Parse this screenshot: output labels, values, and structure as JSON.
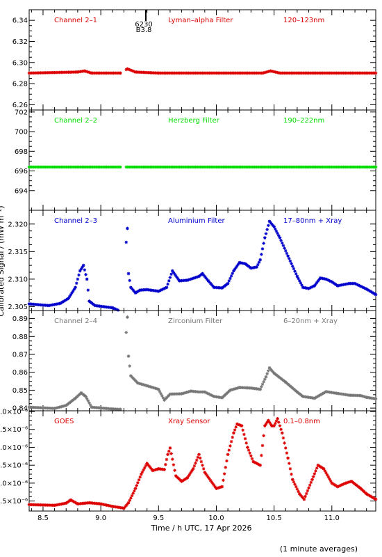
{
  "figure": {
    "ylabel": "Calibrated Signal / (mW m⁻²)",
    "xlabel": "Time / h UTC, 17 Apr 2026",
    "footnote": "(1 minute averages)",
    "event_marker": {
      "x": 9.39,
      "labels": [
        "6230",
        "B3.8"
      ]
    }
  },
  "x_axis": {
    "range": [
      8.38,
      11.38
    ],
    "ticks": [
      8.5,
      9.0,
      9.5,
      10.0,
      10.5,
      11.0
    ],
    "tick_labels": [
      "8.5",
      "9.0",
      "9.5",
      "10.0",
      "10.5",
      "11.0"
    ],
    "minor_step": 0.1
  },
  "chart_data": [
    {
      "type": "scatter",
      "channel": "Channel 2–1",
      "filter": "Lyman–alpha Filter",
      "band": "120–123nm",
      "color": "#dd0000",
      "ylim": [
        6.255,
        6.35
      ],
      "yticks": [
        6.26,
        6.28,
        6.3,
        6.32,
        6.34
      ],
      "ytick_labels": [
        "6.26",
        "6.28",
        "6.30",
        "6.32",
        "6.34"
      ],
      "gap": [
        9.18,
        9.22
      ],
      "points": [
        [
          8.38,
          6.29
        ],
        [
          8.8,
          6.291
        ],
        [
          8.86,
          6.292
        ],
        [
          8.92,
          6.29
        ],
        [
          9.17,
          6.29
        ],
        [
          9.23,
          6.294
        ],
        [
          9.3,
          6.291
        ],
        [
          9.5,
          6.29
        ],
        [
          10.4,
          6.29
        ],
        [
          10.47,
          6.292
        ],
        [
          10.55,
          6.29
        ],
        [
          11.38,
          6.29
        ]
      ]
    },
    {
      "type": "scatter",
      "channel": "Channel 2–2",
      "filter": "Herzberg Filter",
      "band": "190–222nm",
      "color": "#00dd00",
      "ylim": [
        692.0,
        702.2
      ],
      "yticks": [
        694,
        696,
        698,
        700,
        702
      ],
      "ytick_labels": [
        "694",
        "696",
        "698",
        "700",
        "702"
      ],
      "gap": [
        9.18,
        9.22
      ],
      "points": [
        [
          8.38,
          696.4
        ],
        [
          11.38,
          696.4
        ]
      ]
    },
    {
      "type": "scatter",
      "channel": "Channel 2–3",
      "filter": "Aluminium Filter",
      "band": "17–80nm + Xray",
      "color": "#0000cc",
      "ylim": [
        2.3043,
        2.3225
      ],
      "yticks": [
        2.305,
        2.31,
        2.315,
        2.32
      ],
      "ytick_labels": [
        "2.305",
        "2.310",
        "2.315",
        "2.320"
      ],
      "gap": [
        9.18,
        9.22
      ],
      "points": [
        [
          8.38,
          2.3055
        ],
        [
          8.55,
          2.3052
        ],
        [
          8.65,
          2.3056
        ],
        [
          8.72,
          2.3065
        ],
        [
          8.78,
          2.3085
        ],
        [
          8.82,
          2.3115
        ],
        [
          8.85,
          2.3125
        ],
        [
          8.88,
          2.31
        ],
        [
          8.9,
          2.306
        ],
        [
          8.95,
          2.3052
        ],
        [
          9.1,
          2.3048
        ],
        [
          9.17,
          2.3042
        ],
        [
          9.23,
          2.3192
        ],
        [
          9.24,
          2.311
        ],
        [
          9.26,
          2.3085
        ],
        [
          9.3,
          2.3075
        ],
        [
          9.34,
          2.308
        ],
        [
          9.4,
          2.3081
        ],
        [
          9.5,
          2.3078
        ],
        [
          9.57,
          2.3085
        ],
        [
          9.62,
          2.3115
        ],
        [
          9.68,
          2.3097
        ],
        [
          9.75,
          2.3098
        ],
        [
          9.85,
          2.3105
        ],
        [
          9.88,
          2.311
        ],
        [
          9.93,
          2.3097
        ],
        [
          9.98,
          2.3085
        ],
        [
          10.05,
          2.3084
        ],
        [
          10.1,
          2.3092
        ],
        [
          10.15,
          2.3115
        ],
        [
          10.2,
          2.313
        ],
        [
          10.25,
          2.3128
        ],
        [
          10.3,
          2.312
        ],
        [
          10.35,
          2.3122
        ],
        [
          10.38,
          2.3135
        ],
        [
          10.42,
          2.3175
        ],
        [
          10.46,
          2.3205
        ],
        [
          10.5,
          2.3195
        ],
        [
          10.55,
          2.3175
        ],
        [
          10.62,
          2.3142
        ],
        [
          10.7,
          2.3105
        ],
        [
          10.75,
          2.3085
        ],
        [
          10.8,
          2.3083
        ],
        [
          10.85,
          2.3088
        ],
        [
          10.9,
          2.3102
        ],
        [
          10.95,
          2.31
        ],
        [
          11.0,
          2.3095
        ],
        [
          11.05,
          2.3088
        ],
        [
          11.15,
          2.3092
        ],
        [
          11.2,
          2.3092
        ],
        [
          11.3,
          2.3082
        ],
        [
          11.38,
          2.3072
        ]
      ]
    },
    {
      "type": "scatter",
      "channel": "Channel 2–4",
      "filter": "Zirconium Filter",
      "band": "6–20nm + Xray",
      "color": "#777777",
      "ylim": [
        0.8385,
        0.8945
      ],
      "yticks": [
        0.84,
        0.85,
        0.86,
        0.87,
        0.88,
        0.89
      ],
      "ytick_labels": [
        "0.84",
        "0.85",
        "0.86",
        "0.87",
        "0.88",
        "0.89"
      ],
      "gap": [
        9.18,
        9.22
      ],
      "points": [
        [
          8.38,
          0.8405
        ],
        [
          8.6,
          0.8398
        ],
        [
          8.7,
          0.8415
        ],
        [
          8.78,
          0.8455
        ],
        [
          8.83,
          0.8485
        ],
        [
          8.87,
          0.8465
        ],
        [
          8.92,
          0.8405
        ],
        [
          9.1,
          0.8395
        ],
        [
          9.17,
          0.8393
        ],
        [
          9.23,
          0.8908
        ],
        [
          9.24,
          0.869
        ],
        [
          9.26,
          0.858
        ],
        [
          9.32,
          0.854
        ],
        [
          9.4,
          0.8525
        ],
        [
          9.5,
          0.8505
        ],
        [
          9.55,
          0.8445
        ],
        [
          9.6,
          0.8478
        ],
        [
          9.7,
          0.848
        ],
        [
          9.78,
          0.8495
        ],
        [
          9.85,
          0.849
        ],
        [
          9.9,
          0.849
        ],
        [
          9.98,
          0.8465
        ],
        [
          10.05,
          0.8458
        ],
        [
          10.12,
          0.85
        ],
        [
          10.2,
          0.8515
        ],
        [
          10.3,
          0.8512
        ],
        [
          10.38,
          0.8505
        ],
        [
          10.43,
          0.8575
        ],
        [
          10.46,
          0.8625
        ],
        [
          10.5,
          0.8595
        ],
        [
          10.6,
          0.8545
        ],
        [
          10.7,
          0.849
        ],
        [
          10.75,
          0.8465
        ],
        [
          10.85,
          0.8455
        ],
        [
          10.95,
          0.8492
        ],
        [
          11.05,
          0.8482
        ],
        [
          11.15,
          0.8472
        ],
        [
          11.25,
          0.847
        ],
        [
          11.3,
          0.846
        ],
        [
          11.38,
          0.8452
        ]
      ]
    },
    {
      "type": "scatter",
      "channel": "GOES",
      "filter": "Xray Sensor",
      "band": "0.1–0.8nm",
      "color": "#dd0000",
      "ylim": [
        3.22e-06,
        6.02e-06
      ],
      "yticks": [
        3.5e-06,
        4e-06,
        4.5e-06,
        5e-06,
        5.5e-06,
        6e-06
      ],
      "ytick_labels": [
        "3.5×10⁻⁶",
        "4.0×10⁻⁶",
        "4.5×10⁻⁶",
        "5.0×10⁻⁶",
        "5.5×10⁻⁶",
        "6.0×10⁻⁶"
      ],
      "gap": [
        9.22,
        9.23
      ],
      "points": [
        [
          8.38,
          3.4e-06
        ],
        [
          8.6,
          3.38e-06
        ],
        [
          8.7,
          3.44e-06
        ],
        [
          8.74,
          3.53e-06
        ],
        [
          8.8,
          3.42e-06
        ],
        [
          8.9,
          3.45e-06
        ],
        [
          9.0,
          3.42e-06
        ],
        [
          9.1,
          3.35e-06
        ],
        [
          9.2,
          3.3e-06
        ],
        [
          9.24,
          3.45e-06
        ],
        [
          9.3,
          3.85e-06
        ],
        [
          9.35,
          4.25e-06
        ],
        [
          9.4,
          4.55e-06
        ],
        [
          9.45,
          4.35e-06
        ],
        [
          9.5,
          4.4e-06
        ],
        [
          9.55,
          4.38e-06
        ],
        [
          9.58,
          4.8e-06
        ],
        [
          9.6,
          4.98e-06
        ],
        [
          9.65,
          4.2e-06
        ],
        [
          9.7,
          4.05e-06
        ],
        [
          9.75,
          4.15e-06
        ],
        [
          9.8,
          4.4e-06
        ],
        [
          9.85,
          4.8e-06
        ],
        [
          9.9,
          4.3e-06
        ],
        [
          10.0,
          3.85e-06
        ],
        [
          10.05,
          3.9e-06
        ],
        [
          10.1,
          4.8e-06
        ],
        [
          10.15,
          5.4e-06
        ],
        [
          10.18,
          5.65e-06
        ],
        [
          10.22,
          5.6e-06
        ],
        [
          10.27,
          5e-06
        ],
        [
          10.32,
          4.6e-06
        ],
        [
          10.38,
          4.5e-06
        ],
        [
          10.42,
          5.6e-06
        ],
        [
          10.45,
          5.75e-06
        ],
        [
          10.48,
          5.6e-06
        ],
        [
          10.5,
          5.6e-06
        ],
        [
          10.53,
          5.8e-06
        ],
        [
          10.57,
          5.4e-06
        ],
        [
          10.62,
          4.7e-06
        ],
        [
          10.66,
          4.1e-06
        ],
        [
          10.72,
          3.7e-06
        ],
        [
          10.76,
          3.55e-06
        ],
        [
          10.83,
          4.1e-06
        ],
        [
          10.88,
          4.5e-06
        ],
        [
          10.93,
          4.4e-06
        ],
        [
          11.0,
          4e-06
        ],
        [
          11.05,
          3.9e-06
        ],
        [
          11.12,
          4e-06
        ],
        [
          11.17,
          4.05e-06
        ],
        [
          11.25,
          3.85e-06
        ],
        [
          11.3,
          3.7e-06
        ],
        [
          11.38,
          3.55e-06
        ]
      ]
    }
  ]
}
